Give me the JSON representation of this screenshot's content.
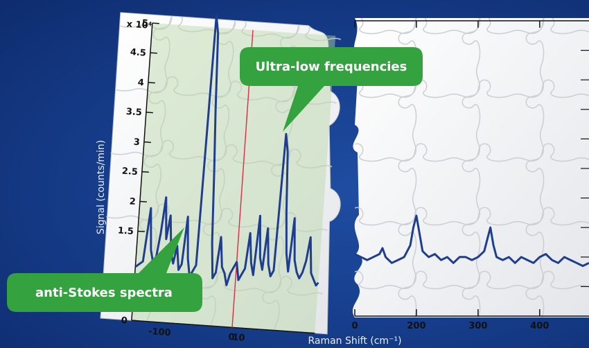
{
  "chart_data": [
    {
      "type": "line",
      "panel": "left",
      "title": "",
      "xlabel": "Raman Shift (cm⁻¹)",
      "ylabel": "Signal (counts/min)",
      "y_multiplier": "x 10⁴",
      "xlim": [
        -140,
        115
      ],
      "ylim": [
        0,
        5
      ],
      "x_ticks": [
        "-100",
        "0",
        "10"
      ],
      "y_ticks": [
        "0",
        "1.5",
        "2",
        "2.5",
        "3",
        "3.5",
        "4",
        "4.5",
        "5"
      ],
      "shaded_region": [
        -140,
        115
      ],
      "vertical_line_x": 0,
      "series": [
        {
          "color": "#1f3d8f",
          "x": [
            -140,
            -130,
            -124,
            -120,
            -116,
            -112,
            -108,
            -104,
            -100,
            -96,
            -92,
            -88,
            -84,
            -80,
            -76,
            -72,
            -68,
            -64,
            -60,
            -56,
            -52,
            -48,
            -44,
            -40,
            -36,
            -32,
            -28,
            -24,
            -20,
            -16,
            -12,
            -8,
            -4,
            0,
            4,
            8,
            12,
            16,
            20,
            24,
            28,
            32,
            36,
            40,
            44,
            48,
            52,
            56,
            60,
            64,
            68,
            72,
            76,
            80,
            84,
            88,
            92,
            96,
            100,
            104,
            108,
            112,
            115
          ],
          "y": [
            0.9,
            1.0,
            1.9,
            1.2,
            1.0,
            1.1,
            1.5,
            2.1,
            1.4,
            1.8,
            1.2,
            1.0,
            1.3,
            0.9,
            1.0,
            1.8,
            1.1,
            0.8,
            0.9,
            1.0,
            5.2,
            4.9,
            3.6,
            2.6,
            1.4,
            0.8,
            0.9,
            1.5,
            1.0,
            0.9,
            0.7,
            0.9,
            1.0,
            1.1,
            0.8,
            0.9,
            1.0,
            1.6,
            1.1,
            0.9,
            1.9,
            1.2,
            1.0,
            1.7,
            1.1,
            0.9,
            1.0,
            3.3,
            3.0,
            2.0,
            1.3,
            1.0,
            1.9,
            1.2,
            1.0,
            0.9,
            1.0,
            1.2,
            1.6,
            1.0,
            0.9,
            0.8,
            0.85
          ]
        }
      ]
    },
    {
      "type": "line",
      "panel": "right",
      "title": "",
      "xlim": [
        100,
        480
      ],
      "x_ticks": [
        "0",
        "200",
        "300",
        "400"
      ],
      "series": [
        {
          "color": "#1f3d8f",
          "x": [
            100,
            110,
            120,
            130,
            140,
            145,
            150,
            155,
            160,
            170,
            180,
            190,
            195,
            200,
            205,
            210,
            220,
            230,
            240,
            250,
            260,
            270,
            280,
            290,
            300,
            310,
            315,
            320,
            325,
            330,
            340,
            350,
            360,
            370,
            380,
            390,
            400,
            410,
            420,
            430,
            440,
            450,
            460,
            470,
            480
          ],
          "y": [
            1.05,
            1.0,
            0.95,
            1.0,
            1.05,
            1.15,
            1.0,
            0.95,
            0.9,
            0.95,
            1.0,
            1.2,
            1.5,
            1.7,
            1.4,
            1.1,
            1.0,
            1.05,
            0.95,
            1.0,
            0.9,
            1.0,
            1.0,
            0.95,
            1.0,
            1.1,
            1.3,
            1.5,
            1.2,
            1.0,
            0.95,
            1.0,
            0.9,
            1.0,
            0.95,
            0.9,
            1.0,
            1.05,
            0.95,
            0.9,
            1.0,
            0.95,
            0.9,
            0.85,
            0.9
          ]
        }
      ]
    }
  ],
  "callouts": {
    "ultra_low": "Ultra-low frequencies",
    "anti_stokes": "anti-Stokes spectra"
  }
}
